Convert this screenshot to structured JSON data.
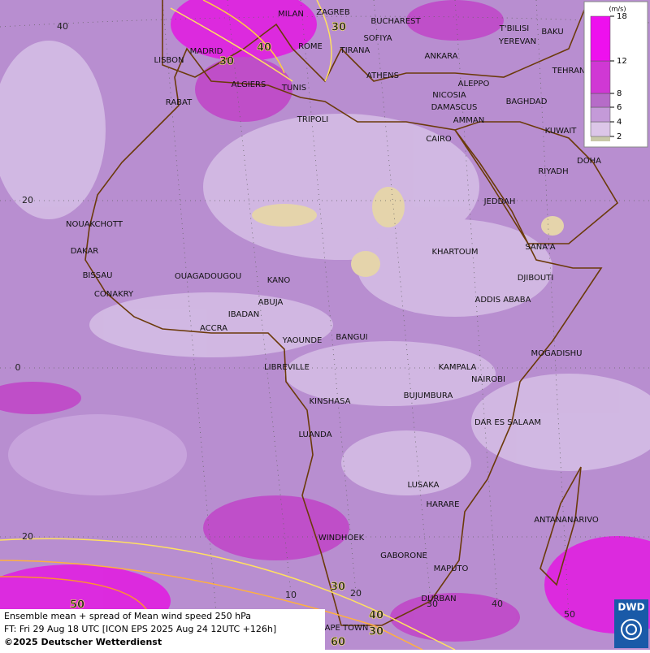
{
  "map": {
    "cities": [
      "MILAN",
      "ZAGREB",
      "BUCHAREST",
      "T'BILISI",
      "BAKU",
      "SOFIYA",
      "YEREVAN",
      "MADRID",
      "ROME",
      "TIRANA",
      "ANKARA",
      "LISBON",
      "TEHRAN",
      "ATHENS",
      "ALGIERS",
      "TUNIS",
      "ALEPPO",
      "RABAT",
      "NICOSIA",
      "BAGHDAD",
      "DAMASCUS",
      "TRIPOLI",
      "AMMAN",
      "KUWAIT",
      "CAIRO",
      "DOHA",
      "RIYADH",
      "JEDDAH",
      "NOUAKCHOTT",
      "SANA'A",
      "DAKAR",
      "KHARTOUM",
      "BISSAU",
      "OUAGADOUGOU",
      "DJIBOUTI",
      "KANO",
      "CONAKRY",
      "ABUJA",
      "ADDIS ABABA",
      "IBADAN",
      "ACCRA",
      "YAOUNDE",
      "BANGUI",
      "MOGADISHU",
      "LIBREVILLE",
      "KAMPALA",
      "NAIROBI",
      "BUJUMBURA",
      "KINSHASA",
      "DAR ES SALAAM",
      "LUANDA",
      "LUSAKA",
      "HARARE",
      "ANTANANARIVO",
      "WINDHOEK",
      "GABORONE",
      "MAPUTO",
      "DURBAN",
      "CAPE TOWN"
    ],
    "latitude_labels": [
      "40",
      "20",
      "0",
      "20"
    ],
    "longitude_labels": [
      "10",
      "20",
      "30",
      "40",
      "50"
    ],
    "contour_labels": [
      "30",
      "40",
      "30",
      "30",
      "50",
      "40",
      "30",
      "60"
    ]
  },
  "legend": {
    "unit": "(m/s)",
    "ticks": [
      2,
      4,
      6,
      8,
      12,
      18
    ],
    "colors": [
      "#dcc6e8",
      "#c49ad8",
      "#b66cc8",
      "#d038d4",
      "#ee10ee"
    ]
  },
  "caption": {
    "line1": "Ensemble mean + spread of Mean wind speed 250 hPa",
    "line2": "FT: Fri 29 Aug 18 UTC [ICON EPS 2025 Aug 24 12UTC +126h]",
    "line3": "©2025 Deutscher Wetterdienst"
  },
  "logo": "DWD"
}
